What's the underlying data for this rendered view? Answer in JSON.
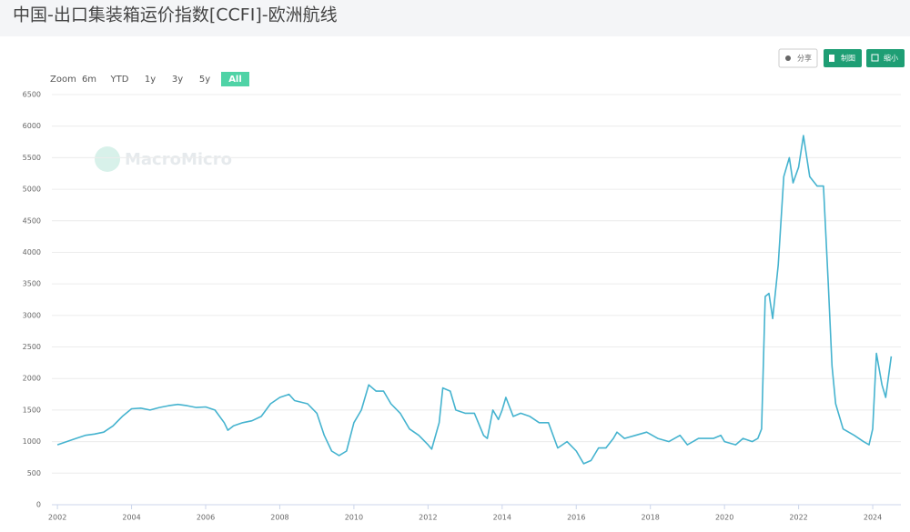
{
  "chart_data": {
    "type": "line",
    "title": "中国-出口集装箱运价指数[CCFI]-欧洲航线",
    "color": "#45b3cf",
    "grid": true,
    "x": [
      2002.0,
      2002.25,
      2002.5,
      2002.75,
      2003.0,
      2003.25,
      2003.5,
      2003.75,
      2004.0,
      2004.25,
      2004.5,
      2004.75,
      2005.0,
      2005.25,
      2005.5,
      2005.75,
      2006.0,
      2006.25,
      2006.5,
      2006.6,
      2006.75,
      2007.0,
      2007.25,
      2007.5,
      2007.75,
      2008.0,
      2008.25,
      2008.4,
      2008.75,
      2009.0,
      2009.2,
      2009.4,
      2009.6,
      2009.8,
      2010.0,
      2010.2,
      2010.4,
      2010.6,
      2010.8,
      2011.0,
      2011.25,
      2011.5,
      2011.75,
      2012.0,
      2012.1,
      2012.3,
      2012.4,
      2012.6,
      2012.75,
      2013.0,
      2013.25,
      2013.5,
      2013.6,
      2013.75,
      2013.9,
      2014.0,
      2014.1,
      2014.3,
      2014.5,
      2014.75,
      2015.0,
      2015.25,
      2015.5,
      2015.75,
      2016.0,
      2016.2,
      2016.4,
      2016.6,
      2016.8,
      2017.0,
      2017.1,
      2017.3,
      2017.6,
      2017.9,
      2018.2,
      2018.5,
      2018.8,
      2019.0,
      2019.3,
      2019.7,
      2019.9,
      2020.0,
      2020.3,
      2020.5,
      2020.75,
      2020.9,
      2021.0,
      2021.1,
      2021.2,
      2021.3,
      2021.45,
      2021.6,
      2021.75,
      2021.85,
      2022.0,
      2022.13,
      2022.3,
      2022.5,
      2022.67,
      2022.8,
      2022.9,
      2023.0,
      2023.2,
      2023.5,
      2023.75,
      2023.9,
      2024.0,
      2024.1,
      2024.25,
      2024.35,
      2024.5
    ],
    "values": [
      950,
      1000,
      1050,
      1100,
      1120,
      1150,
      1250,
      1400,
      1520,
      1530,
      1500,
      1540,
      1570,
      1590,
      1570,
      1540,
      1550,
      1500,
      1300,
      1180,
      1250,
      1300,
      1330,
      1400,
      1600,
      1700,
      1750,
      1650,
      1600,
      1450,
      1100,
      850,
      780,
      850,
      1300,
      1500,
      1900,
      1800,
      1800,
      1600,
      1450,
      1200,
      1100,
      950,
      880,
      1300,
      1850,
      1800,
      1500,
      1450,
      1450,
      1100,
      1050,
      1500,
      1350,
      1500,
      1700,
      1400,
      1450,
      1400,
      1300,
      1300,
      900,
      1000,
      850,
      650,
      700,
      900,
      900,
      1050,
      1150,
      1050,
      1100,
      1150,
      1050,
      1000,
      1100,
      950,
      1050,
      1050,
      1100,
      1000,
      950,
      1050,
      1000,
      1050,
      1200,
      3300,
      3350,
      2950,
      3800,
      5200,
      5500,
      5100,
      5350,
      5850,
      5200,
      5050,
      5050,
      3500,
      2200,
      1600,
      1200,
      1100,
      1000,
      950,
      1200,
      2400,
      1900,
      1700,
      2350
    ],
    "xlim": [
      2001.85,
      2024.76
    ],
    "xticks": [
      2002,
      2004,
      2006,
      2008,
      2010,
      2012,
      2014,
      2016,
      2018,
      2020,
      2022,
      2024
    ],
    "ylim": [
      0,
      6500
    ],
    "yticks": [
      0,
      500,
      1000,
      1500,
      2000,
      2500,
      3000,
      3500,
      4000,
      4500,
      5000,
      5500,
      6000,
      6500
    ]
  },
  "toolbar": {
    "buttons": [
      "分享",
      "制图",
      "缩小"
    ],
    "zoom_label": "Zoom",
    "zoom": [
      "6m",
      "YTD",
      "1y",
      "3y",
      "5y",
      "All"
    ],
    "watermark": "MacroMicro"
  }
}
